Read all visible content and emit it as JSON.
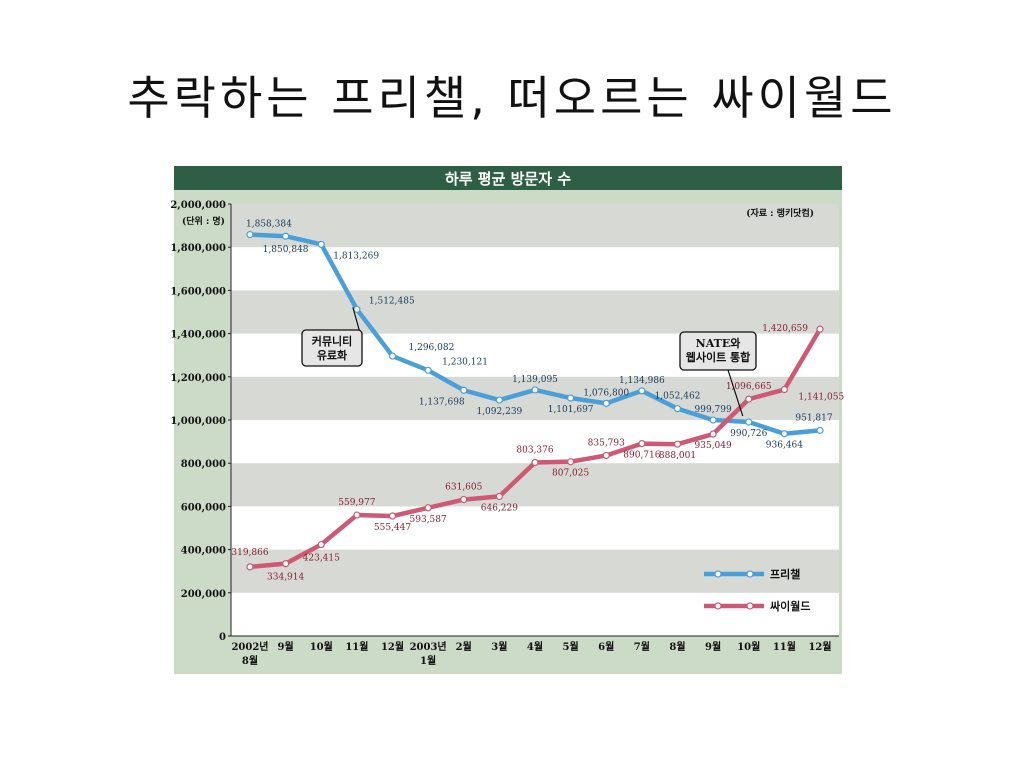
{
  "slide": {
    "title": "추락하는 프리챌, 떠오르는 싸이월드"
  },
  "chart_data": {
    "type": "line",
    "title": "하루 평균 방문자 수",
    "unit_note": "(단위 : 명)",
    "source": "(자료 : 랭키닷컴)",
    "ylim": [
      0,
      2000000
    ],
    "y_ticks": [
      0,
      200000,
      400000,
      600000,
      800000,
      1000000,
      1200000,
      1400000,
      1600000,
      1800000,
      2000000
    ],
    "y_tick_labels": [
      "0",
      "200,000",
      "400,000",
      "600,000",
      "800,000",
      "1,000,000",
      "1,200,000",
      "1,400,000",
      "1,600,000",
      "1,800,000",
      "2,000,000"
    ],
    "categories": [
      {
        "l1": "2002년",
        "l2": "8월"
      },
      {
        "l1": "9월",
        "l2": ""
      },
      {
        "l1": "10월",
        "l2": ""
      },
      {
        "l1": "11월",
        "l2": ""
      },
      {
        "l1": "12월",
        "l2": ""
      },
      {
        "l1": "2003년",
        "l2": "1월"
      },
      {
        "l1": "2월",
        "l2": ""
      },
      {
        "l1": "3월",
        "l2": ""
      },
      {
        "l1": "4월",
        "l2": ""
      },
      {
        "l1": "5월",
        "l2": ""
      },
      {
        "l1": "6월",
        "l2": ""
      },
      {
        "l1": "7월",
        "l2": ""
      },
      {
        "l1": "8월",
        "l2": ""
      },
      {
        "l1": "9월",
        "l2": ""
      },
      {
        "l1": "10월",
        "l2": ""
      },
      {
        "l1": "11월",
        "l2": ""
      },
      {
        "l1": "12월",
        "l2": ""
      }
    ],
    "grid": "horizontal bands",
    "legend_position": "bottom-right",
    "series": [
      {
        "name": "프리챌",
        "color": "#4b9fd8",
        "values": [
          1858384,
          1850848,
          1813269,
          1512485,
          1296082,
          1230121,
          1137698,
          1092239,
          1139095,
          1101697,
          1076800,
          1134986,
          1052462,
          999799,
          990726,
          936464,
          951817
        ],
        "labels": [
          "1,858,384",
          "1,850,848",
          "1,813,269",
          "1,512,485",
          "1,296,082",
          "1,230,121",
          "1,137,698",
          "1,092,239",
          "1,139,095",
          "1,101,697",
          "1,076,800",
          "1,134,986",
          "1,052,462",
          "999,799",
          "990,726",
          "936,464",
          "951,817"
        ]
      },
      {
        "name": "싸이월드",
        "color": "#cf5874",
        "values": [
          319866,
          334914,
          423415,
          559977,
          555447,
          593587,
          631605,
          646229,
          803376,
          807025,
          835793,
          890716,
          888001,
          935049,
          1096665,
          1141055,
          1420659
        ],
        "labels": [
          "319,866",
          "334,914",
          "423,415",
          "559,977",
          "555,447",
          "593,587",
          "631,605",
          "646,229",
          "803,376",
          "807,025",
          "835,793",
          "890,716",
          "888,001",
          "935,049",
          "1,096,665",
          "1,141,055",
          "1,420,659"
        ]
      }
    ],
    "annotations": [
      {
        "lines": [
          "커뮤니티",
          "유료화"
        ],
        "series": 0,
        "index": 3
      },
      {
        "lines": [
          "NATE와",
          "웹사이트 통합"
        ],
        "series": 0,
        "index": 14
      }
    ]
  }
}
